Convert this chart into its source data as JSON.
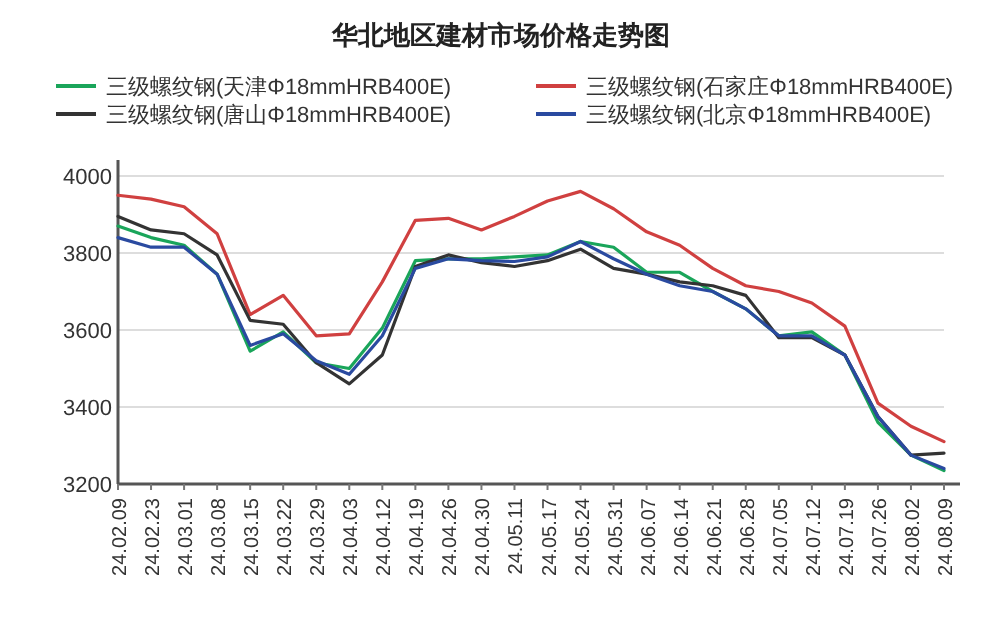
{
  "chart_data": {
    "type": "line",
    "title": "华北地区建材市场价格走势图",
    "categories": [
      "24.02.09",
      "24.02.23",
      "24.03.01",
      "24.03.08",
      "24.03.15",
      "24.03.22",
      "24.03.29",
      "24.04.03",
      "24.04.12",
      "24.04.19",
      "24.04.26",
      "24.04.30",
      "24.05.11",
      "24.05.17",
      "24.05.24",
      "24.05.31",
      "24.06.07",
      "24.06.14",
      "24.06.21",
      "24.06.28",
      "24.07.05",
      "24.07.12",
      "24.07.19",
      "24.07.26",
      "24.08.02",
      "24.08.09"
    ],
    "series": [
      {
        "name": "三级螺纹钢(天津Φ18mmHRB400E)",
        "color": "#1aa55a",
        "values": [
          3870,
          3840,
          3820,
          3745,
          3545,
          3595,
          3515,
          3500,
          3605,
          3780,
          3785,
          3785,
          3790,
          3795,
          3830,
          3815,
          3750,
          3750,
          3700,
          3655,
          3585,
          3595,
          3535,
          3360,
          3275,
          3235
        ]
      },
      {
        "name": "三级螺纹钢(石家庄Φ18mmHRB400E)",
        "color": "#d04040",
        "values": [
          3950,
          3940,
          3920,
          3850,
          3640,
          3690,
          3585,
          3590,
          3725,
          3885,
          3890,
          3860,
          3895,
          3935,
          3960,
          3915,
          3855,
          3820,
          3760,
          3715,
          3700,
          3670,
          3610,
          3410,
          3350,
          3310
        ]
      },
      {
        "name": "三级螺纹钢(唐山Φ18mmHRB400E)",
        "color": "#333333",
        "values": [
          3895,
          3860,
          3850,
          3795,
          3625,
          3615,
          3515,
          3460,
          3535,
          3765,
          3795,
          3775,
          3765,
          3780,
          3810,
          3760,
          3745,
          3725,
          3715,
          3690,
          3580,
          3580,
          3535,
          3375,
          3275,
          3280
        ]
      },
      {
        "name": "三级螺纹钢(北京Φ18mmHRB400E)",
        "color": "#2a4aa0",
        "values": [
          3840,
          3815,
          3815,
          3745,
          3560,
          3590,
          3520,
          3485,
          3585,
          3760,
          3785,
          3780,
          3778,
          3790,
          3830,
          3785,
          3745,
          3715,
          3700,
          3655,
          3585,
          3585,
          3535,
          3375,
          3275,
          3240
        ]
      }
    ],
    "ylim": [
      3200,
      4000
    ],
    "yticks": [
      3200,
      3400,
      3600,
      3800,
      4000
    ],
    "grid": "y",
    "legend": "top"
  }
}
